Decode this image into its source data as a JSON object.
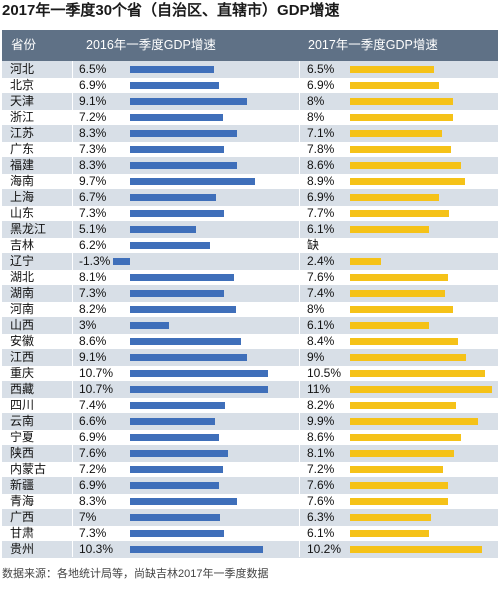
{
  "title": "2017年一季度30个省（自治区、直辖市）GDP增速",
  "footer": "数据来源：各地统计局等，尚缺吉林2017年一季度数据",
  "chart_data": {
    "type": "bar",
    "header_province": "省份",
    "series": [
      {
        "name": "2016年一季度GDP增速",
        "color": "#3f6fba"
      },
      {
        "name": "2017年一季度GDP增速",
        "color": "#f5c218"
      }
    ],
    "rows": [
      {
        "province": "河北",
        "v2016": 6.5,
        "v2017": 6.5,
        "l2016": "6.5%",
        "l2017": "6.5%"
      },
      {
        "province": "北京",
        "v2016": 6.9,
        "v2017": 6.9,
        "l2016": "6.9%",
        "l2017": "6.9%"
      },
      {
        "province": "天津",
        "v2016": 9.1,
        "v2017": 8,
        "l2016": "9.1%",
        "l2017": "8%"
      },
      {
        "province": "浙江",
        "v2016": 7.2,
        "v2017": 8,
        "l2016": "7.2%",
        "l2017": "8%"
      },
      {
        "province": "江苏",
        "v2016": 8.3,
        "v2017": 7.1,
        "l2016": "8.3%",
        "l2017": "7.1%"
      },
      {
        "province": "广东",
        "v2016": 7.3,
        "v2017": 7.8,
        "l2016": "7.3%",
        "l2017": "7.8%"
      },
      {
        "province": "福建",
        "v2016": 8.3,
        "v2017": 8.6,
        "l2016": "8.3%",
        "l2017": "8.6%"
      },
      {
        "province": "海南",
        "v2016": 9.7,
        "v2017": 8.9,
        "l2016": "9.7%",
        "l2017": "8.9%"
      },
      {
        "province": "上海",
        "v2016": 6.7,
        "v2017": 6.9,
        "l2016": "6.7%",
        "l2017": "6.9%"
      },
      {
        "province": "山东",
        "v2016": 7.3,
        "v2017": 7.7,
        "l2016": "7.3%",
        "l2017": "7.7%"
      },
      {
        "province": "黑龙江",
        "v2016": 5.1,
        "v2017": 6.1,
        "l2016": "5.1%",
        "l2017": "6.1%"
      },
      {
        "province": "吉林",
        "v2016": 6.2,
        "v2017": null,
        "l2016": "6.2%",
        "l2017": "缺"
      },
      {
        "province": "辽宁",
        "v2016": -1.3,
        "v2017": 2.4,
        "l2016": "-1.3%",
        "l2017": "2.4%"
      },
      {
        "province": "湖北",
        "v2016": 8.1,
        "v2017": 7.6,
        "l2016": "8.1%",
        "l2017": "7.6%"
      },
      {
        "province": "湖南",
        "v2016": 7.3,
        "v2017": 7.4,
        "l2016": "7.3%",
        "l2017": "7.4%"
      },
      {
        "province": "河南",
        "v2016": 8.2,
        "v2017": 8,
        "l2016": "8.2%",
        "l2017": "8%"
      },
      {
        "province": "山西",
        "v2016": 3,
        "v2017": 6.1,
        "l2016": "3%",
        "l2017": "6.1%"
      },
      {
        "province": "安徽",
        "v2016": 8.6,
        "v2017": 8.4,
        "l2016": "8.6%",
        "l2017": "8.4%"
      },
      {
        "province": "江西",
        "v2016": 9.1,
        "v2017": 9,
        "l2016": "9.1%",
        "l2017": "9%"
      },
      {
        "province": "重庆",
        "v2016": 10.7,
        "v2017": 10.5,
        "l2016": "10.7%",
        "l2017": "10.5%"
      },
      {
        "province": "西藏",
        "v2016": 10.7,
        "v2017": 11,
        "l2016": "10.7%",
        "l2017": "11%"
      },
      {
        "province": "四川",
        "v2016": 7.4,
        "v2017": 8.2,
        "l2016": "7.4%",
        "l2017": "8.2%"
      },
      {
        "province": "云南",
        "v2016": 6.6,
        "v2017": 9.9,
        "l2016": "6.6%",
        "l2017": "9.9%"
      },
      {
        "province": "宁夏",
        "v2016": 6.9,
        "v2017": 8.6,
        "l2016": "6.9%",
        "l2017": "8.6%"
      },
      {
        "province": "陕西",
        "v2016": 7.6,
        "v2017": 8.1,
        "l2016": "7.6%",
        "l2017": "8.1%"
      },
      {
        "province": "内蒙古",
        "v2016": 7.2,
        "v2017": 7.2,
        "l2016": "7.2%",
        "l2017": "7.2%"
      },
      {
        "province": "新疆",
        "v2016": 6.9,
        "v2017": 7.6,
        "l2016": "6.9%",
        "l2017": "7.6%"
      },
      {
        "province": "青海",
        "v2016": 8.3,
        "v2017": 7.6,
        "l2016": "8.3%",
        "l2017": "7.6%"
      },
      {
        "province": "广西",
        "v2016": 7,
        "v2017": 6.3,
        "l2016": "7%",
        "l2017": "6.3%"
      },
      {
        "province": "甘肃",
        "v2016": 7.3,
        "v2017": 6.1,
        "l2016": "7.3%",
        "l2017": "6.1%"
      },
      {
        "province": "贵州",
        "v2016": 10.3,
        "v2017": 10.2,
        "l2016": "10.3%",
        "l2017": "10.2%"
      }
    ]
  }
}
